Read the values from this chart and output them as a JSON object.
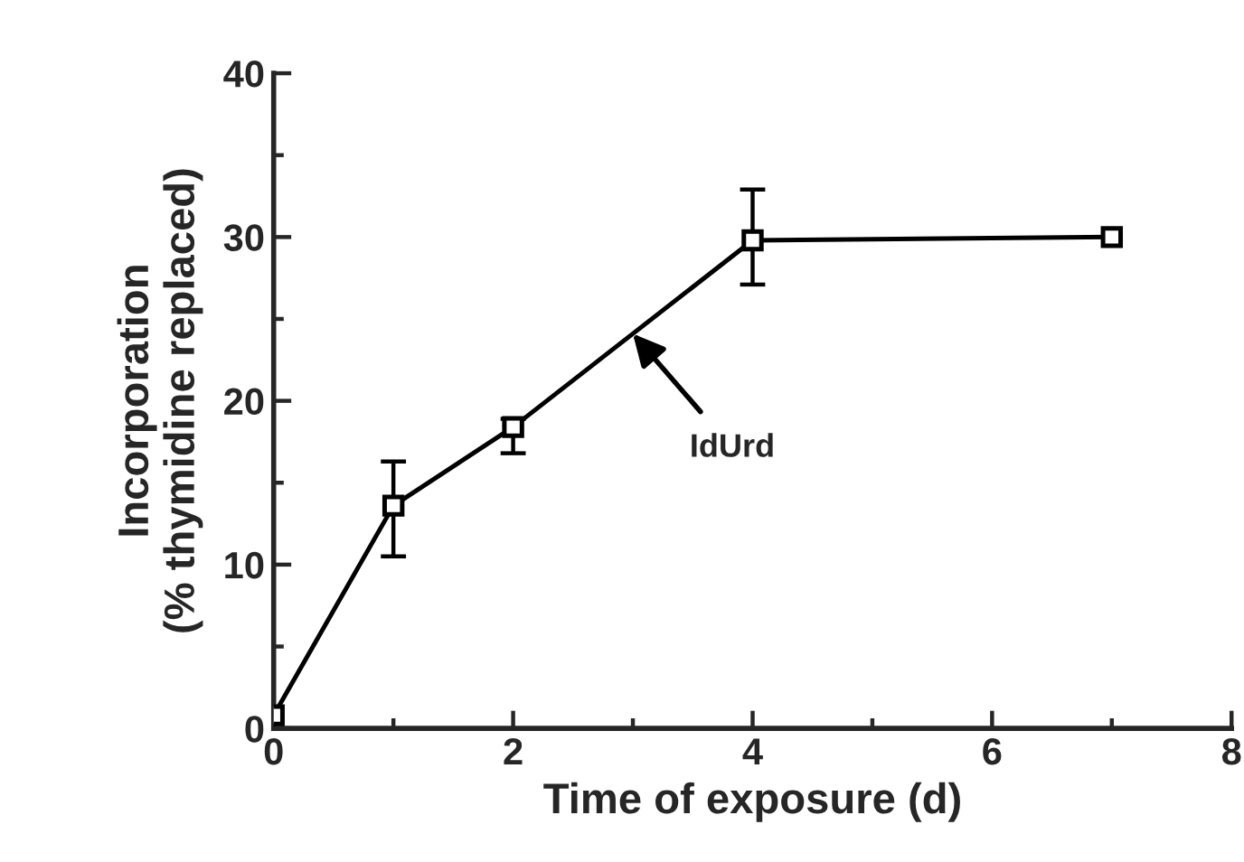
{
  "chart_data": {
    "type": "line",
    "xlabel": "Time of exposure (d)",
    "ylabel": "Incorporation\n(% thymidine replaced)",
    "x": [
      0,
      1,
      2,
      4,
      7
    ],
    "series": [
      {
        "color": "#000000",
        "values": [
          0.8,
          13.6,
          18.4,
          29.8,
          30.0
        ],
        "errors": [
          null,
          [
            10.5,
            16.3
          ],
          [
            16.8,
            18.9
          ],
          [
            27.1,
            32.9
          ],
          null
        ]
      }
    ],
    "marker": "square",
    "line_style": "solid",
    "grid": false,
    "xlim": [
      0,
      8
    ],
    "ylim": [
      0,
      40
    ],
    "xticks": [
      0,
      {
        "value": 1,
        "label": null
      },
      2,
      {
        "value": 3,
        "label": null
      },
      4,
      {
        "value": 5,
        "label": null
      },
      6,
      {
        "value": 7,
        "label": null
      },
      8
    ],
    "yticks": [
      0,
      {
        "value": 5,
        "label": null
      },
      10,
      {
        "value": 15,
        "label": null
      },
      20,
      {
        "value": 25,
        "label": null
      },
      30,
      {
        "value": 35,
        "label": null
      },
      40
    ],
    "annotations": [
      {
        "text": "IdUrd",
        "x": 3,
        "y": 24.1
      }
    ]
  }
}
